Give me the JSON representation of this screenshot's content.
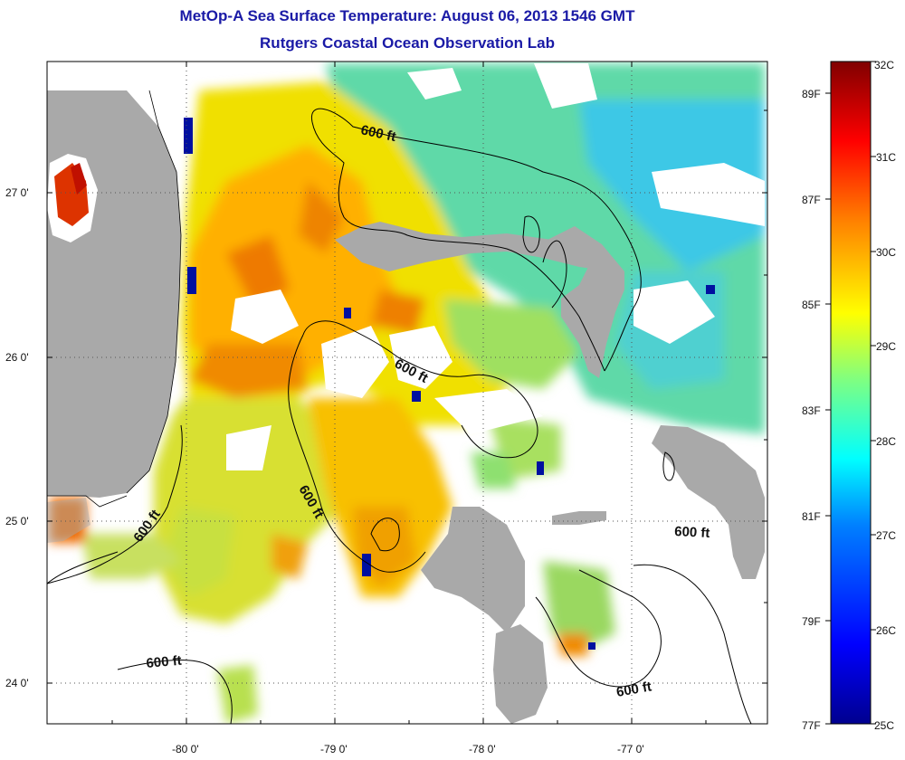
{
  "title": "MetOp-A Sea Surface Temperature:  August 06, 2013 1546 GMT",
  "subtitle": "Rutgers Coastal Ocean Observation Lab",
  "map": {
    "lon_ticks": [
      "-80 0'",
      "-79 0'",
      "-78 0'",
      "-77 0'"
    ],
    "lat_ticks": [
      "27 0'",
      "26 0'",
      "25 0'",
      "24 0'"
    ],
    "contour_label": "600 ft",
    "colors": {
      "land": "#a9a9a9",
      "cloud": "#ffffff",
      "contour": "#000000"
    }
  },
  "colorbar": {
    "celsius_labels": [
      "32C",
      "31C",
      "30C",
      "29C",
      "28C",
      "27C",
      "26C",
      "25C"
    ],
    "fahrenheit_labels": [
      "89F",
      "87F",
      "85F",
      "83F",
      "81F",
      "79F",
      "77F"
    ],
    "range_c": [
      25,
      32
    ],
    "colors": [
      "#00008f",
      "#0000ff",
      "#0080ff",
      "#00ffff",
      "#80ff80",
      "#ffff00",
      "#ff8000",
      "#ff0000",
      "#800000"
    ]
  }
}
